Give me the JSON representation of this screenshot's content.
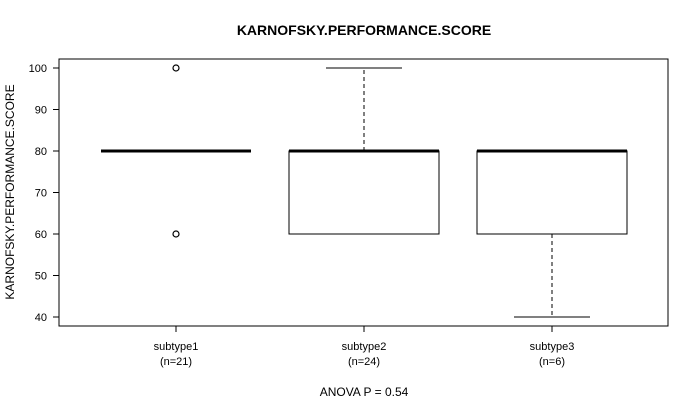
{
  "chart_data": {
    "type": "boxplot",
    "title": "KARNOFSKY.PERFORMANCE.SCORE",
    "ylabel": "KARNOFSKY.PERFORMANCE.SCORE",
    "footer": "ANOVA P = 0.54",
    "ylim": [
      38,
      103
    ],
    "yticks": [
      40,
      50,
      60,
      70,
      80,
      90,
      100
    ],
    "groups": [
      {
        "label": "subtype1",
        "n_label": "(n=21)",
        "min": 80,
        "q1": 80,
        "median": 80,
        "q3": 80,
        "max": 80,
        "outliers": [
          100,
          60
        ]
      },
      {
        "label": "subtype2",
        "n_label": "(n=24)",
        "min": 60,
        "q1": 60,
        "median": 80,
        "q3": 80,
        "max": 100,
        "outliers": []
      },
      {
        "label": "subtype3",
        "n_label": "(n=6)",
        "min": 40,
        "q1": 60,
        "median": 80,
        "q3": 80,
        "max": 80,
        "outliers": []
      }
    ]
  }
}
